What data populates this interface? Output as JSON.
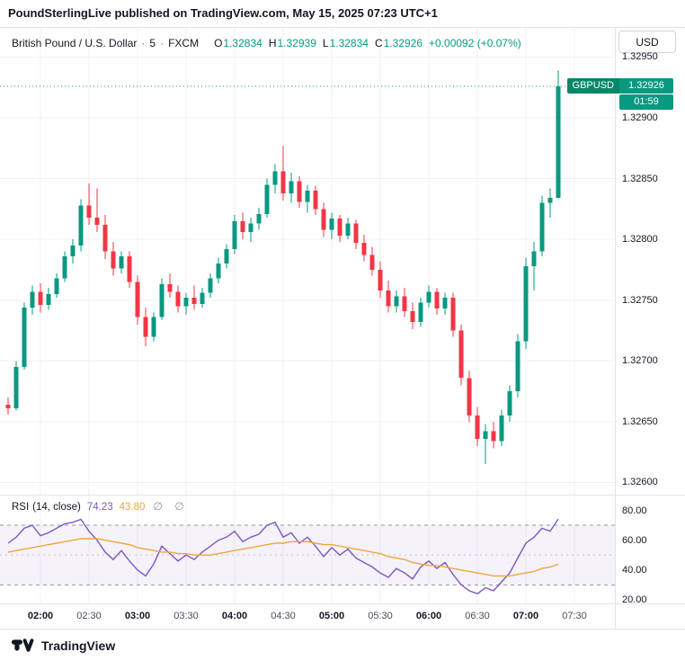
{
  "attribution": "PoundSterlingLive published on TradingView.com, May 15, 2025 07:23 UTC+1",
  "header": {
    "symbol_title": "British Pound / U.S. Dollar",
    "separator": "·",
    "interval": "5",
    "exchange": "FXCM",
    "ohlc": {
      "o_label": "O",
      "o": "1.32834",
      "h_label": "H",
      "h": "1.32939",
      "l_label": "L",
      "l": "1.32834",
      "c_label": "C",
      "c": "1.32926",
      "change": "+0.00092 (+0.07%)"
    }
  },
  "price_axis": {
    "currency": "USD",
    "ticks": [
      {
        "label": "1.32950",
        "value": 1.3295
      },
      {
        "label": "1.32900",
        "value": 1.329
      },
      {
        "label": "1.32850",
        "value": 1.3285
      },
      {
        "label": "1.32800",
        "value": 1.328
      },
      {
        "label": "1.32750",
        "value": 1.3275
      },
      {
        "label": "1.32700",
        "value": 1.327
      },
      {
        "label": "1.32650",
        "value": 1.3265
      },
      {
        "label": "1.32600",
        "value": 1.326
      }
    ],
    "last": {
      "symbol": "GBPUSD",
      "price": "1.32926",
      "countdown": "01:59"
    }
  },
  "rsi": {
    "title": "RSI",
    "params": "(14, close)",
    "value": "74.23",
    "ma_value": "43.80",
    "hidden_values": "∅ ∅",
    "axis_ticks": [
      {
        "label": "80.00",
        "value": 80
      },
      {
        "label": "60.00",
        "value": 60
      },
      {
        "label": "40.00",
        "value": 40
      },
      {
        "label": "20.00",
        "value": 20
      }
    ]
  },
  "footer": {
    "brand": "TradingView"
  },
  "colors": {
    "up": "#089981",
    "down": "#F23645",
    "grid": "#EFF1F5",
    "rsi_line": "#7E57C2",
    "rsi_ma": "#F0A73C",
    "band_line": "#8A8E9E",
    "band_fill": "rgba(126,87,194,0.08)",
    "text": "#131722",
    "muted": "#787B86",
    "border": "#E0E3EB",
    "badge_symbol_bg": "#078769",
    "badge_bg": "#089981"
  },
  "chart_data": {
    "type": "candlestick",
    "title": "British Pound / U.S. Dollar, 5, FXCM",
    "interval_minutes": 5,
    "grid": true,
    "price_axis": {
      "min": 1.3259,
      "max": 1.32974,
      "grid_step": 0.0005
    },
    "last_price": 1.32926,
    "times": [
      "01:40",
      "01:45",
      "01:50",
      "01:55",
      "02:00",
      "02:05",
      "02:10",
      "02:15",
      "02:20",
      "02:25",
      "02:30",
      "02:35",
      "02:40",
      "02:45",
      "02:50",
      "02:55",
      "03:00",
      "03:05",
      "03:10",
      "03:15",
      "03:20",
      "03:25",
      "03:30",
      "03:35",
      "03:40",
      "03:45",
      "03:50",
      "03:55",
      "04:00",
      "04:05",
      "04:10",
      "04:15",
      "04:20",
      "04:25",
      "04:30",
      "04:35",
      "04:40",
      "04:45",
      "04:50",
      "04:55",
      "05:00",
      "05:05",
      "05:10",
      "05:15",
      "05:20",
      "05:25",
      "05:30",
      "05:35",
      "05:40",
      "05:45",
      "05:50",
      "05:55",
      "06:00",
      "06:05",
      "06:10",
      "06:15",
      "06:20",
      "06:25",
      "06:30",
      "06:35",
      "06:40",
      "06:45",
      "06:50",
      "06:55",
      "07:00",
      "07:05",
      "07:10",
      "07:15",
      "07:20"
    ],
    "candles": [
      [
        1.32664,
        1.3267,
        1.32656,
        1.32661
      ],
      [
        1.32661,
        1.327,
        1.32659,
        1.32695
      ],
      [
        1.32695,
        1.32748,
        1.32693,
        1.32744
      ],
      [
        1.32744,
        1.32762,
        1.32738,
        1.32757
      ],
      [
        1.32757,
        1.32764,
        1.3274,
        1.32746
      ],
      [
        1.32746,
        1.3276,
        1.32742,
        1.32755
      ],
      [
        1.32755,
        1.32772,
        1.32752,
        1.32768
      ],
      [
        1.32768,
        1.3279,
        1.32765,
        1.32786
      ],
      [
        1.32786,
        1.328,
        1.3278,
        1.32795
      ],
      [
        1.32795,
        1.32833,
        1.3279,
        1.32828
      ],
      [
        1.32828,
        1.32846,
        1.32812,
        1.32818
      ],
      [
        1.32818,
        1.32842,
        1.32806,
        1.32812
      ],
      [
        1.32812,
        1.3282,
        1.32784,
        1.3279
      ],
      [
        1.3279,
        1.32798,
        1.3277,
        1.32776
      ],
      [
        1.32776,
        1.3279,
        1.32772,
        1.32786
      ],
      [
        1.32786,
        1.3279,
        1.3276,
        1.32765
      ],
      [
        1.32765,
        1.3277,
        1.3273,
        1.32736
      ],
      [
        1.32736,
        1.32744,
        1.32712,
        1.3272
      ],
      [
        1.3272,
        1.3274,
        1.32716,
        1.32736
      ],
      [
        1.32736,
        1.32768,
        1.32734,
        1.32763
      ],
      [
        1.32763,
        1.32772,
        1.32752,
        1.32757
      ],
      [
        1.32757,
        1.32762,
        1.3274,
        1.32745
      ],
      [
        1.32745,
        1.32756,
        1.32738,
        1.32752
      ],
      [
        1.32752,
        1.32762,
        1.32742,
        1.32747
      ],
      [
        1.32747,
        1.3276,
        1.32744,
        1.32756
      ],
      [
        1.32756,
        1.32772,
        1.32752,
        1.32768
      ],
      [
        1.32768,
        1.32785,
        1.32764,
        1.3278
      ],
      [
        1.3278,
        1.32796,
        1.32776,
        1.32792
      ],
      [
        1.32792,
        1.3282,
        1.32788,
        1.32815
      ],
      [
        1.32815,
        1.32822,
        1.328,
        1.32806
      ],
      [
        1.32806,
        1.32818,
        1.32798,
        1.32813
      ],
      [
        1.32813,
        1.32826,
        1.32808,
        1.32821
      ],
      [
        1.32821,
        1.3285,
        1.32818,
        1.32845
      ],
      [
        1.32845,
        1.32862,
        1.32838,
        1.32856
      ],
      [
        1.32856,
        1.32877,
        1.32832,
        1.32838
      ],
      [
        1.32838,
        1.32855,
        1.3283,
        1.32848
      ],
      [
        1.32848,
        1.32852,
        1.32826,
        1.32831
      ],
      [
        1.32831,
        1.32845,
        1.32822,
        1.3284
      ],
      [
        1.3284,
        1.32844,
        1.3282,
        1.32825
      ],
      [
        1.32825,
        1.3283,
        1.32802,
        1.32808
      ],
      [
        1.32808,
        1.32822,
        1.328,
        1.32817
      ],
      [
        1.32817,
        1.3282,
        1.32798,
        1.32803
      ],
      [
        1.32803,
        1.32818,
        1.328,
        1.32813
      ],
      [
        1.32813,
        1.32816,
        1.32792,
        1.32797
      ],
      [
        1.32797,
        1.32804,
        1.32782,
        1.32787
      ],
      [
        1.32787,
        1.32794,
        1.3277,
        1.32775
      ],
      [
        1.32775,
        1.32782,
        1.32752,
        1.32758
      ],
      [
        1.32758,
        1.32766,
        1.3274,
        1.32745
      ],
      [
        1.32745,
        1.32758,
        1.3274,
        1.32753
      ],
      [
        1.32753,
        1.3276,
        1.32736,
        1.32741
      ],
      [
        1.32741,
        1.32748,
        1.32726,
        1.32732
      ],
      [
        1.32732,
        1.32752,
        1.32728,
        1.32748
      ],
      [
        1.32748,
        1.32762,
        1.32744,
        1.32757
      ],
      [
        1.32757,
        1.3276,
        1.32738,
        1.32743
      ],
      [
        1.32743,
        1.32756,
        1.32738,
        1.32752
      ],
      [
        1.32752,
        1.32756,
        1.3272,
        1.32725
      ],
      [
        1.32725,
        1.3273,
        1.3268,
        1.32686
      ],
      [
        1.32686,
        1.32692,
        1.3265,
        1.32655
      ],
      [
        1.32655,
        1.32662,
        1.3263,
        1.32636
      ],
      [
        1.32636,
        1.32648,
        1.32615,
        1.32642
      ],
      [
        1.32642,
        1.3265,
        1.32628,
        1.32634
      ],
      [
        1.32634,
        1.3266,
        1.3263,
        1.32655
      ],
      [
        1.32655,
        1.3268,
        1.3265,
        1.32675
      ],
      [
        1.32675,
        1.32722,
        1.3267,
        1.32716
      ],
      [
        1.32716,
        1.32785,
        1.3271,
        1.32778
      ],
      [
        1.32778,
        1.32798,
        1.32758,
        1.3279
      ],
      [
        1.3279,
        1.32836,
        1.32786,
        1.3283
      ],
      [
        1.3283,
        1.32842,
        1.32818,
        1.32834
      ],
      [
        1.32834,
        1.32939,
        1.32834,
        1.32926
      ]
    ],
    "time_ticks": [
      {
        "label": "02:00",
        "index": 4,
        "bold": true
      },
      {
        "label": "02:30",
        "index": 10,
        "bold": false
      },
      {
        "label": "03:00",
        "index": 16,
        "bold": true
      },
      {
        "label": "03:30",
        "index": 22,
        "bold": false
      },
      {
        "label": "04:00",
        "index": 28,
        "bold": true
      },
      {
        "label": "04:30",
        "index": 34,
        "bold": false
      },
      {
        "label": "05:00",
        "index": 40,
        "bold": true
      },
      {
        "label": "05:30",
        "index": 46,
        "bold": false
      },
      {
        "label": "06:00",
        "index": 52,
        "bold": true
      },
      {
        "label": "06:30",
        "index": 58,
        "bold": false
      },
      {
        "label": "07:00",
        "index": 64,
        "bold": true
      },
      {
        "label": "07:30",
        "index": 70,
        "bold": false
      }
    ],
    "rsi_pane": {
      "type": "line",
      "axis": {
        "min": 17.5,
        "max": 90,
        "ticks": [
          80,
          60,
          40,
          20
        ]
      },
      "bands": {
        "upper": 70,
        "middle": 50,
        "lower": 30
      },
      "series": [
        {
          "name": "RSI",
          "color_key": "rsi_line",
          "values": [
            58,
            62,
            68,
            70,
            63,
            65,
            68,
            71,
            72,
            74,
            66,
            60,
            52,
            47,
            53,
            46,
            40,
            36,
            44,
            56,
            51,
            46,
            50,
            47,
            52,
            56,
            60,
            62,
            66,
            59,
            62,
            64,
            70,
            72,
            62,
            65,
            58,
            62,
            56,
            49,
            55,
            50,
            54,
            48,
            45,
            42,
            38,
            35,
            41,
            38,
            34,
            42,
            46,
            41,
            45,
            37,
            30,
            26,
            24,
            28,
            26,
            32,
            38,
            48,
            58,
            62,
            68,
            66,
            74.23
          ]
        },
        {
          "name": "RSI-based MA",
          "color_key": "rsi_ma",
          "values": [
            52,
            53,
            54,
            55,
            56,
            57,
            58,
            59,
            60,
            61,
            61,
            61,
            60,
            59,
            58,
            57,
            55,
            54,
            53,
            52,
            52,
            51,
            51,
            50,
            50,
            50,
            51,
            52,
            53,
            54,
            55,
            56,
            57,
            58,
            58,
            59,
            59,
            59,
            58,
            57,
            57,
            56,
            55,
            54,
            53,
            52,
            51,
            49,
            48,
            47,
            45,
            44,
            43,
            43,
            42,
            41,
            40,
            39,
            38,
            37,
            36,
            36,
            36,
            37,
            38,
            39,
            41,
            42,
            43.8
          ]
        }
      ]
    }
  }
}
